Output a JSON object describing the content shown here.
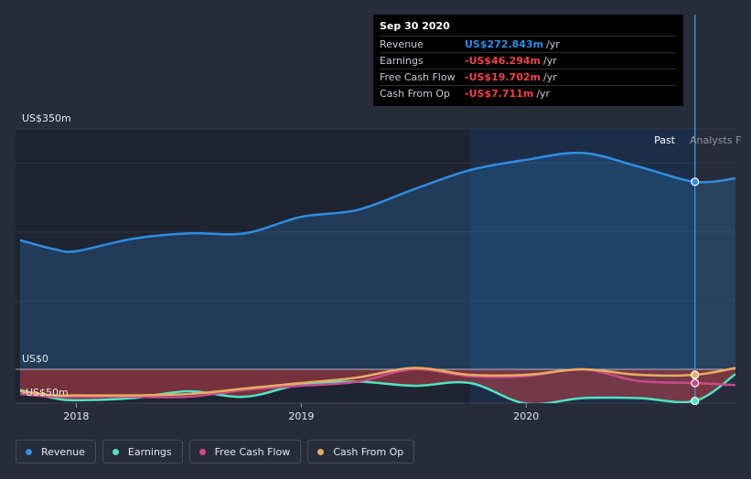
{
  "tooltip": {
    "date": "Sep 30 2020",
    "rows": [
      {
        "label": "Revenue",
        "value": "US$272.843m",
        "unit": "/yr",
        "color": "#2f8de4"
      },
      {
        "label": "Earnings",
        "value": "-US$46.294m",
        "unit": "/yr",
        "color": "#f0434a"
      },
      {
        "label": "Free Cash Flow",
        "value": "-US$19.702m",
        "unit": "/yr",
        "color": "#f0434a"
      },
      {
        "label": "Cash From Op",
        "value": "-US$7.711m",
        "unit": "/yr",
        "color": "#f0434a"
      }
    ]
  },
  "legend": [
    {
      "label": "Revenue",
      "color": "#2f8de4"
    },
    {
      "label": "Earnings",
      "color": "#50e3c2"
    },
    {
      "label": "Free Cash Flow",
      "color": "#c94a8c"
    },
    {
      "label": "Cash From Op",
      "color": "#e9ad5f"
    }
  ],
  "chart_data": {
    "type": "line",
    "title": "",
    "y_labels": {
      "top": "US$350m",
      "zero": "US$0",
      "bottom": "-US$50m"
    },
    "ylim": [
      -50,
      350
    ],
    "xlim": [
      2017.73,
      2020.93
    ],
    "x_ticks": [
      {
        "value": 2018,
        "label": "2018"
      },
      {
        "value": 2019,
        "label": "2019"
      },
      {
        "value": 2020,
        "label": "2020"
      }
    ],
    "past_label": "Past",
    "analysts_label": "Analysts F",
    "highlight_start": 2019.75,
    "divider_x": 2020.75,
    "series": [
      {
        "name": "Revenue",
        "color": "#2f8de4",
        "points": [
          [
            2017.75,
            188
          ],
          [
            2017.9,
            175
          ],
          [
            2018.0,
            172
          ],
          [
            2018.25,
            190
          ],
          [
            2018.5,
            198
          ],
          [
            2018.75,
            198
          ],
          [
            2019.0,
            222
          ],
          [
            2019.25,
            232
          ],
          [
            2019.5,
            262
          ],
          [
            2019.75,
            290
          ],
          [
            2020.0,
            305
          ],
          [
            2020.25,
            315
          ],
          [
            2020.5,
            295
          ],
          [
            2020.75,
            273
          ],
          [
            2020.93,
            278
          ]
        ],
        "highlight": 2020.75
      },
      {
        "name": "Earnings",
        "color": "#50e3c2",
        "points": [
          [
            2017.75,
            -30
          ],
          [
            2017.9,
            -42
          ],
          [
            2018.0,
            -45
          ],
          [
            2018.25,
            -42
          ],
          [
            2018.5,
            -32
          ],
          [
            2018.75,
            -40
          ],
          [
            2019.0,
            -22
          ],
          [
            2019.25,
            -18
          ],
          [
            2019.5,
            -24
          ],
          [
            2019.75,
            -20
          ],
          [
            2020.0,
            -50
          ],
          [
            2020.25,
            -42
          ],
          [
            2020.5,
            -42
          ],
          [
            2020.75,
            -46
          ],
          [
            2020.93,
            -7
          ]
        ],
        "highlight": 2020.75
      },
      {
        "name": "Free Cash Flow",
        "color": "#c94a8c",
        "points": [
          [
            2017.75,
            -36
          ],
          [
            2017.9,
            -40
          ],
          [
            2018.0,
            -40
          ],
          [
            2018.25,
            -40
          ],
          [
            2018.5,
            -40
          ],
          [
            2018.75,
            -30
          ],
          [
            2019.0,
            -24
          ],
          [
            2019.25,
            -18
          ],
          [
            2019.5,
            0
          ],
          [
            2019.75,
            -10
          ],
          [
            2020.0,
            -10
          ],
          [
            2020.25,
            0
          ],
          [
            2020.5,
            -17
          ],
          [
            2020.75,
            -20
          ],
          [
            2020.93,
            -23
          ]
        ],
        "highlight": 2020.75
      },
      {
        "name": "Cash From Op",
        "color": "#e9ad5f",
        "points": [
          [
            2017.75,
            -32
          ],
          [
            2017.9,
            -38
          ],
          [
            2018.0,
            -38
          ],
          [
            2018.25,
            -38
          ],
          [
            2018.5,
            -36
          ],
          [
            2018.75,
            -28
          ],
          [
            2019.0,
            -20
          ],
          [
            2019.25,
            -12
          ],
          [
            2019.5,
            2
          ],
          [
            2019.75,
            -8
          ],
          [
            2020.0,
            -8
          ],
          [
            2020.25,
            0
          ],
          [
            2020.5,
            -8
          ],
          [
            2020.75,
            -8
          ],
          [
            2020.93,
            2
          ]
        ],
        "highlight": 2020.75
      }
    ]
  }
}
